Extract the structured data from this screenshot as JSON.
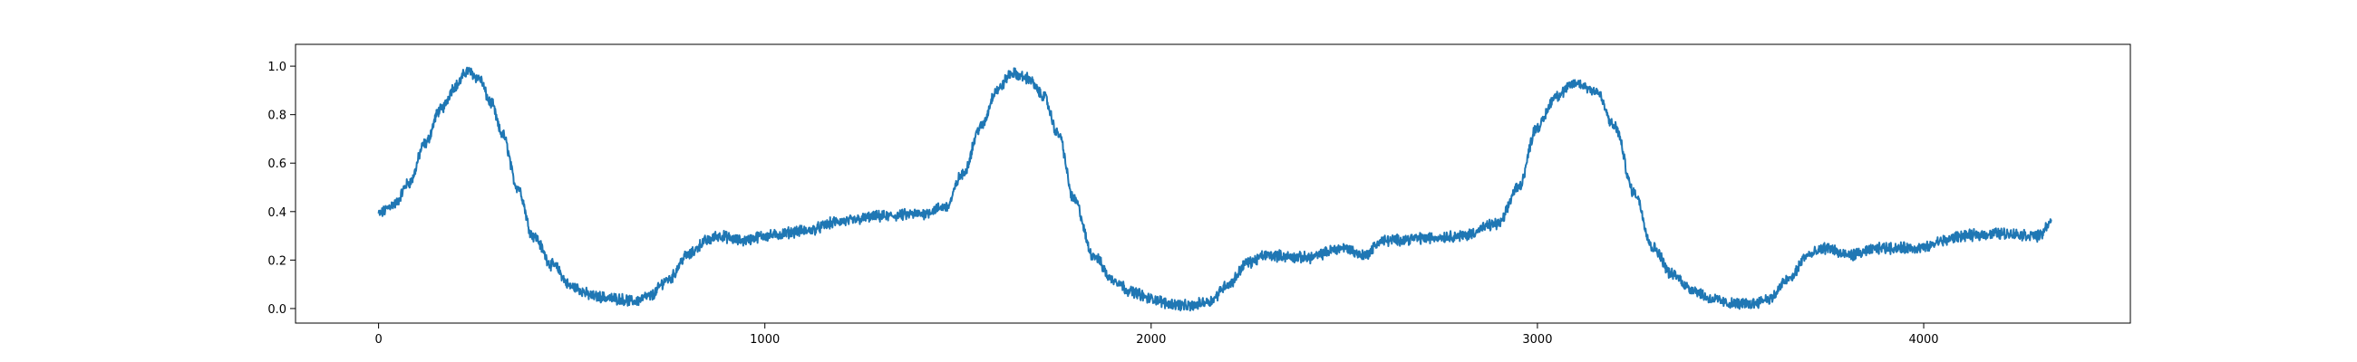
{
  "chart_data": {
    "type": "line",
    "title": "",
    "xlabel": "",
    "ylabel": "",
    "xlim": [
      -215,
      4535
    ],
    "ylim": [
      -0.06,
      1.09
    ],
    "x_ticks": [
      0,
      1000,
      2000,
      3000,
      4000
    ],
    "x_tick_labels": [
      "0",
      "1000",
      "2000",
      "3000",
      "4000"
    ],
    "y_ticks": [
      0.0,
      0.2,
      0.4,
      0.6,
      0.8,
      1.0
    ],
    "y_tick_labels": [
      "0.0",
      "0.2",
      "0.4",
      "0.6",
      "0.8",
      "1.0"
    ],
    "grid": false,
    "legend": "none",
    "line_color": "#1f77b4",
    "noise_amplitude": 0.018,
    "series": [
      {
        "x": [
          0,
          40,
          80,
          120,
          160,
          200,
          230,
          260,
          290,
          320,
          360,
          400,
          450,
          500,
          560,
          620,
          660,
          700,
          750,
          800,
          850,
          880,
          940,
          1000,
          1100,
          1200,
          1300,
          1400,
          1470,
          1510,
          1560,
          1600,
          1640,
          1680,
          1720,
          1760,
          1800,
          1850,
          1900,
          1950,
          2000,
          2050,
          2100,
          2150,
          2200,
          2250,
          2300,
          2400,
          2500,
          2550,
          2600,
          2700,
          2800,
          2900,
          2950,
          3000,
          3050,
          3100,
          3150,
          3200,
          3250,
          3300,
          3350,
          3400,
          3450,
          3500,
          3550,
          3600,
          3650,
          3700,
          3750,
          3800,
          3900,
          4000,
          4050,
          4100,
          4200,
          4300,
          4330
        ],
        "y": [
          0.39,
          0.43,
          0.52,
          0.68,
          0.82,
          0.92,
          0.98,
          0.95,
          0.85,
          0.72,
          0.5,
          0.3,
          0.18,
          0.09,
          0.05,
          0.04,
          0.03,
          0.05,
          0.12,
          0.22,
          0.28,
          0.3,
          0.28,
          0.3,
          0.32,
          0.36,
          0.38,
          0.39,
          0.42,
          0.55,
          0.75,
          0.9,
          0.97,
          0.95,
          0.88,
          0.72,
          0.45,
          0.22,
          0.12,
          0.07,
          0.04,
          0.02,
          0.01,
          0.03,
          0.1,
          0.19,
          0.22,
          0.21,
          0.25,
          0.22,
          0.28,
          0.29,
          0.3,
          0.35,
          0.5,
          0.75,
          0.88,
          0.93,
          0.9,
          0.75,
          0.48,
          0.25,
          0.14,
          0.08,
          0.04,
          0.02,
          0.02,
          0.04,
          0.12,
          0.22,
          0.25,
          0.22,
          0.25,
          0.25,
          0.28,
          0.3,
          0.31,
          0.3,
          0.36
        ]
      }
    ]
  }
}
